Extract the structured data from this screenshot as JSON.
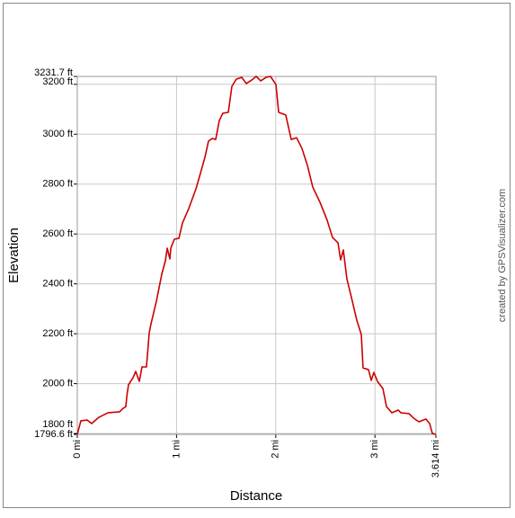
{
  "chart_data": {
    "type": "line",
    "xlabel": "Distance",
    "ylabel": "Elevation",
    "credit": "created by GPSVisualizer.com",
    "xlim": [
      0,
      3.614
    ],
    "ylim": [
      1796.6,
      3231.7
    ],
    "xticks": [
      {
        "value": 0,
        "label": "0 mi"
      },
      {
        "value": 1,
        "label": "1 mi"
      },
      {
        "value": 2,
        "label": "2 mi"
      },
      {
        "value": 3,
        "label": "3 mi"
      },
      {
        "value": 3.614,
        "label": "3.614 mi"
      }
    ],
    "yticks": [
      {
        "value": 1796.6,
        "label": "1796.6 ft"
      },
      {
        "value": 1800,
        "label": "1800 ft"
      },
      {
        "value": 2000,
        "label": "2000 ft"
      },
      {
        "value": 2200,
        "label": "2200 ft"
      },
      {
        "value": 2400,
        "label": "2400 ft"
      },
      {
        "value": 2600,
        "label": "2600 ft"
      },
      {
        "value": 2800,
        "label": "2800 ft"
      },
      {
        "value": 3000,
        "label": "3000 ft"
      },
      {
        "value": 3200,
        "label": "3200 ft"
      },
      {
        "value": 3231.7,
        "label": "3231.7 ft"
      }
    ],
    "grid": true,
    "series": [
      {
        "name": "Elevation",
        "color": "#cc0000",
        "x": [
          0,
          0.036,
          0.1,
          0.145,
          0.217,
          0.308,
          0.426,
          0.453,
          0.489,
          0.5,
          0.516,
          0.562,
          0.589,
          0.625,
          0.652,
          0.697,
          0.725,
          0.743,
          0.797,
          0.851,
          0.888,
          0.906,
          0.933,
          0.942,
          0.978,
          1.024,
          1.06,
          1.123,
          1.196,
          1.232,
          1.286,
          1.322,
          1.359,
          1.395,
          1.431,
          1.467,
          1.522,
          1.558,
          1.603,
          1.658,
          1.703,
          1.757,
          1.803,
          1.848,
          1.902,
          1.947,
          2.002,
          2.029,
          2.101,
          2.156,
          2.21,
          2.264,
          2.319,
          2.373,
          2.446,
          2.518,
          2.572,
          2.627,
          2.654,
          2.681,
          2.717,
          2.772,
          2.817,
          2.862,
          2.88,
          2.935,
          2.962,
          2.989,
          3.025,
          3.08,
          3.116,
          3.17,
          3.234,
          3.261,
          3.342,
          3.388,
          3.442,
          3.514,
          3.551,
          3.578,
          3.614
        ],
        "values": [
          1797,
          1851,
          1854,
          1840,
          1865,
          1883,
          1887,
          1898,
          1908,
          1952,
          1995,
          2024,
          2049,
          2009,
          2067,
          2067,
          2204,
          2240,
          2330,
          2438,
          2493,
          2543,
          2500,
          2543,
          2579,
          2583,
          2644,
          2702,
          2781,
          2831,
          2907,
          2972,
          2983,
          2979,
          3055,
          3084,
          3088,
          3192,
          3221,
          3228,
          3203,
          3217,
          3232,
          3214,
          3228,
          3232,
          3199,
          3088,
          3077,
          2979,
          2986,
          2943,
          2875,
          2788,
          2727,
          2655,
          2586,
          2565,
          2496,
          2536,
          2420,
          2330,
          2254,
          2197,
          2063,
          2056,
          2013,
          2045,
          2009,
          1980,
          1908,
          1883,
          1894,
          1883,
          1880,
          1862,
          1847,
          1858,
          1840,
          1800,
          1797
        ]
      }
    ]
  }
}
